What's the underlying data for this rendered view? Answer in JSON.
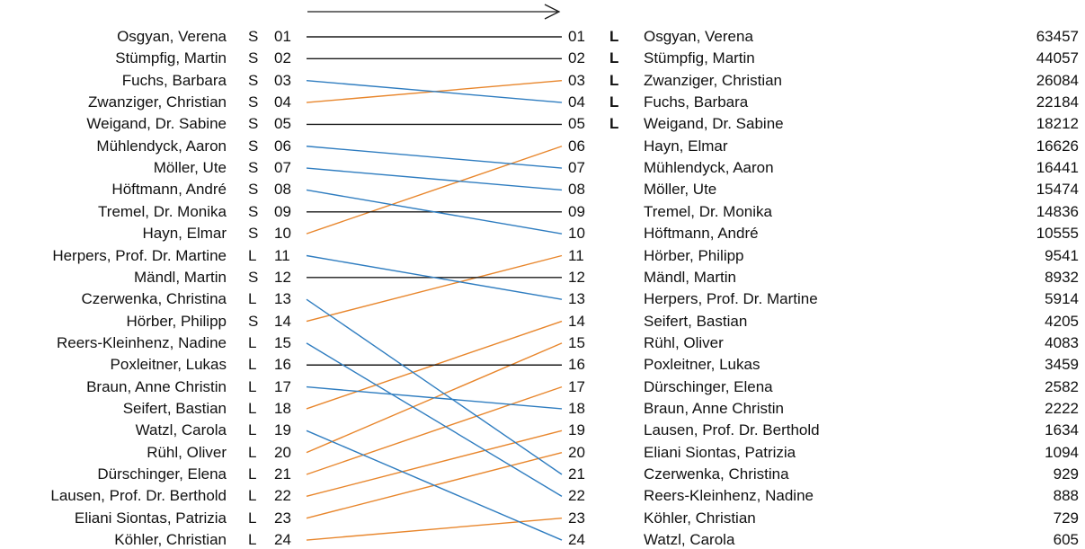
{
  "colors": {
    "unchanged": "#1a1a1a",
    "up": "#e8862c",
    "down": "#2f7dc0"
  },
  "left": [
    {
      "rank": "01",
      "name": "Osgyan, Verena",
      "list": "S"
    },
    {
      "rank": "02",
      "name": "Stümpfig, Martin",
      "list": "S"
    },
    {
      "rank": "03",
      "name": "Fuchs, Barbara",
      "list": "S"
    },
    {
      "rank": "04",
      "name": "Zwanziger, Christian",
      "list": "S"
    },
    {
      "rank": "05",
      "name": "Weigand, Dr. Sabine",
      "list": "S"
    },
    {
      "rank": "06",
      "name": "Mühlendyck, Aaron",
      "list": "S"
    },
    {
      "rank": "07",
      "name": "Möller, Ute",
      "list": "S"
    },
    {
      "rank": "08",
      "name": "Höftmann, André",
      "list": "S"
    },
    {
      "rank": "09",
      "name": "Tremel, Dr. Monika",
      "list": "S"
    },
    {
      "rank": "10",
      "name": "Hayn, Elmar",
      "list": "S"
    },
    {
      "rank": "11",
      "name": "Herpers, Prof. Dr. Martine",
      "list": "L"
    },
    {
      "rank": "12",
      "name": "Mändl, Martin",
      "list": "S"
    },
    {
      "rank": "13",
      "name": "Czerwenka, Christina",
      "list": "L"
    },
    {
      "rank": "14",
      "name": "Hörber, Philipp",
      "list": "S"
    },
    {
      "rank": "15",
      "name": "Reers-Kleinhenz, Nadine",
      "list": "L"
    },
    {
      "rank": "16",
      "name": "Poxleitner, Lukas",
      "list": "L"
    },
    {
      "rank": "17",
      "name": "Braun, Anne Christin",
      "list": "L"
    },
    {
      "rank": "18",
      "name": "Seifert, Bastian",
      "list": "L"
    },
    {
      "rank": "19",
      "name": "Watzl, Carola",
      "list": "L"
    },
    {
      "rank": "20",
      "name": "Rühl, Oliver",
      "list": "L"
    },
    {
      "rank": "21",
      "name": "Dürschinger, Elena",
      "list": "L"
    },
    {
      "rank": "22",
      "name": "Lausen, Prof. Dr. Berthold",
      "list": "L"
    },
    {
      "rank": "23",
      "name": "Eliani Siontas, Patrizia",
      "list": "L"
    },
    {
      "rank": "24",
      "name": "Köhler, Christian",
      "list": "L"
    }
  ],
  "right": [
    {
      "rank": "01",
      "flag": "L",
      "name": "Osgyan, Verena",
      "votes": "63457",
      "from": 1
    },
    {
      "rank": "02",
      "flag": "L",
      "name": "Stümpfig, Martin",
      "votes": "44057",
      "from": 2
    },
    {
      "rank": "03",
      "flag": "L",
      "name": "Zwanziger, Christian",
      "votes": "26084",
      "from": 4
    },
    {
      "rank": "04",
      "flag": "L",
      "name": "Fuchs, Barbara",
      "votes": "22184",
      "from": 3
    },
    {
      "rank": "05",
      "flag": "L",
      "name": "Weigand, Dr. Sabine",
      "votes": "18212",
      "from": 5
    },
    {
      "rank": "06",
      "flag": "",
      "name": "Hayn, Elmar",
      "votes": "16626",
      "from": 10
    },
    {
      "rank": "07",
      "flag": "",
      "name": "Mühlendyck, Aaron",
      "votes": "16441",
      "from": 6
    },
    {
      "rank": "08",
      "flag": "",
      "name": "Möller, Ute",
      "votes": "15474",
      "from": 7
    },
    {
      "rank": "09",
      "flag": "",
      "name": "Tremel, Dr. Monika",
      "votes": "14836",
      "from": 9
    },
    {
      "rank": "10",
      "flag": "",
      "name": "Höftmann, André",
      "votes": "10555",
      "from": 8
    },
    {
      "rank": "11",
      "flag": "",
      "name": "Hörber, Philipp",
      "votes": "9541",
      "from": 14
    },
    {
      "rank": "12",
      "flag": "",
      "name": "Mändl, Martin",
      "votes": "8932",
      "from": 12
    },
    {
      "rank": "13",
      "flag": "",
      "name": "Herpers, Prof. Dr. Martine",
      "votes": "5914",
      "from": 11
    },
    {
      "rank": "14",
      "flag": "",
      "name": "Seifert, Bastian",
      "votes": "4205",
      "from": 18
    },
    {
      "rank": "15",
      "flag": "",
      "name": "Rühl, Oliver",
      "votes": "4083",
      "from": 20
    },
    {
      "rank": "16",
      "flag": "",
      "name": "Poxleitner, Lukas",
      "votes": "3459",
      "from": 16
    },
    {
      "rank": "17",
      "flag": "",
      "name": "Dürschinger, Elena",
      "votes": "2582",
      "from": 21
    },
    {
      "rank": "18",
      "flag": "",
      "name": "Braun, Anne Christin",
      "votes": "2222",
      "from": 17
    },
    {
      "rank": "19",
      "flag": "",
      "name": "Lausen, Prof. Dr. Berthold",
      "votes": "1634",
      "from": 22
    },
    {
      "rank": "20",
      "flag": "",
      "name": "Eliani Siontas, Patrizia",
      "votes": "1094",
      "from": 23
    },
    {
      "rank": "21",
      "flag": "",
      "name": "Czerwenka, Christina",
      "votes": "929",
      "from": 13
    },
    {
      "rank": "22",
      "flag": "",
      "name": "Reers-Kleinhenz, Nadine",
      "votes": "888",
      "from": 15
    },
    {
      "rank": "23",
      "flag": "",
      "name": "Köhler, Christian",
      "votes": "729",
      "from": 24
    },
    {
      "rank": "24",
      "flag": "",
      "name": "Watzl, Carola",
      "votes": "605",
      "from": 19
    }
  ]
}
